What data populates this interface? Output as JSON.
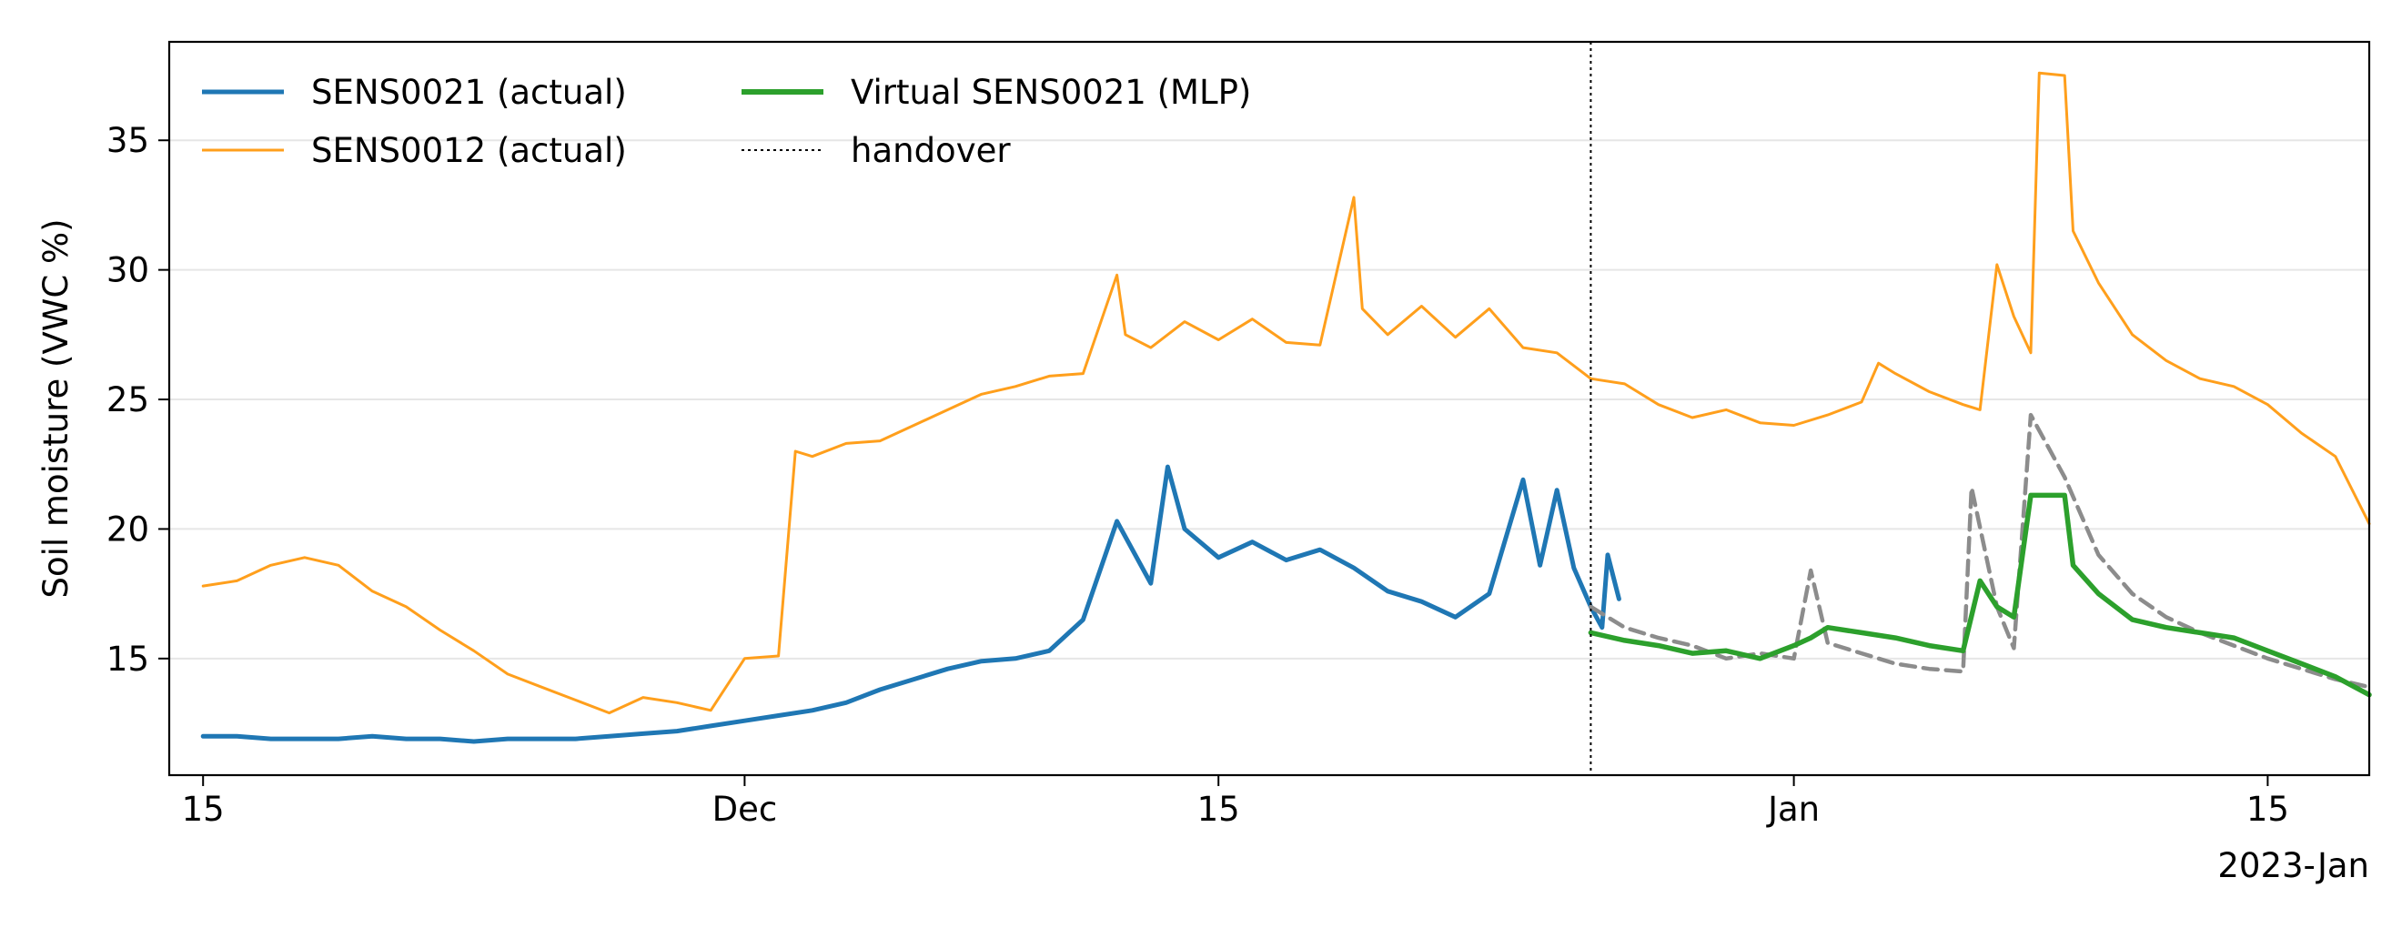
{
  "chart_data": {
    "type": "line",
    "ylabel": "Soil moisture (VWC %)",
    "xlabel": "",
    "x_axis": {
      "type": "date",
      "range": [
        "2022-11-14",
        "2023-01-18"
      ],
      "ticks": [
        {
          "date": "2022-11-15",
          "label": "15"
        },
        {
          "date": "2022-12-01",
          "label": "Dec"
        },
        {
          "date": "2022-12-15",
          "label": "15"
        },
        {
          "date": "2023-01-01",
          "label": "Jan"
        },
        {
          "date": "2023-01-15",
          "label": "15"
        }
      ],
      "offset_label": "2023-Jan"
    },
    "y_axis": {
      "range": [
        10.5,
        38.8
      ],
      "ticks": [
        15,
        20,
        25,
        30,
        35
      ]
    },
    "grid": "horizontal",
    "legend": {
      "placement": "top-left",
      "columns": 2,
      "entries": [
        {
          "label": "SENS0021 (actual)",
          "series": "sens0021"
        },
        {
          "label": "SENS0012 (actual)",
          "series": "sens0012"
        },
        {
          "label": "Virtual SENS0021 (MLP)",
          "series": "virtual"
        },
        {
          "label": "handover",
          "series": "handover"
        }
      ]
    },
    "handover_date": "2022-12-26",
    "series": [
      {
        "id": "sens0021",
        "color": "#1f77b4",
        "points": [
          [
            "2022-11-15",
            12.0
          ],
          [
            "2022-11-16",
            12.0
          ],
          [
            "2022-11-17",
            11.9
          ],
          [
            "2022-11-18",
            11.9
          ],
          [
            "2022-11-19",
            11.9
          ],
          [
            "2022-11-20",
            12.0
          ],
          [
            "2022-11-21",
            11.9
          ],
          [
            "2022-11-22",
            11.9
          ],
          [
            "2022-11-23",
            11.8
          ],
          [
            "2022-11-24",
            11.9
          ],
          [
            "2022-11-25",
            11.9
          ],
          [
            "2022-11-26",
            11.9
          ],
          [
            "2022-11-27",
            12.0
          ],
          [
            "2022-11-28",
            12.1
          ],
          [
            "2022-11-29",
            12.2
          ],
          [
            "2022-11-30",
            12.4
          ],
          [
            "2022-12-01",
            12.6
          ],
          [
            "2022-12-02",
            12.8
          ],
          [
            "2022-12-03",
            13.0
          ],
          [
            "2022-12-04",
            13.3
          ],
          [
            "2022-12-05",
            13.8
          ],
          [
            "2022-12-06",
            14.2
          ],
          [
            "2022-12-07",
            14.6
          ],
          [
            "2022-12-08",
            14.9
          ],
          [
            "2022-12-09",
            15.0
          ],
          [
            "2022-12-10",
            15.3
          ],
          [
            "2022-12-11",
            16.5
          ],
          [
            "2022-12-12",
            20.3
          ],
          [
            "2022-12-13",
            17.9
          ],
          [
            "2022-12-13T12:00",
            22.4
          ],
          [
            "2022-12-14",
            20.0
          ],
          [
            "2022-12-15",
            18.9
          ],
          [
            "2022-12-16",
            19.5
          ],
          [
            "2022-12-17",
            18.8
          ],
          [
            "2022-12-18",
            19.2
          ],
          [
            "2022-12-19",
            18.5
          ],
          [
            "2022-12-20",
            17.6
          ],
          [
            "2022-12-21",
            17.2
          ],
          [
            "2022-12-22",
            16.6
          ],
          [
            "2022-12-23",
            17.5
          ],
          [
            "2022-12-24",
            21.9
          ],
          [
            "2022-12-24T12:00",
            18.6
          ],
          [
            "2022-12-25",
            21.5
          ],
          [
            "2022-12-25T12:00",
            18.5
          ],
          [
            "2022-12-26",
            17.0
          ],
          [
            "2022-12-26T08:00",
            16.2
          ],
          [
            "2022-12-26T12:00",
            19.0
          ],
          [
            "2022-12-26T20:00",
            17.3
          ]
        ]
      },
      {
        "id": "sens0012",
        "color": "#ff9f1c",
        "points": [
          [
            "2022-11-15",
            17.8
          ],
          [
            "2022-11-16",
            18.0
          ],
          [
            "2022-11-17",
            18.6
          ],
          [
            "2022-11-18",
            18.9
          ],
          [
            "2022-11-19",
            18.6
          ],
          [
            "2022-11-20",
            17.6
          ],
          [
            "2022-11-21",
            17.0
          ],
          [
            "2022-11-22",
            16.1
          ],
          [
            "2022-11-23",
            15.3
          ],
          [
            "2022-11-24",
            14.4
          ],
          [
            "2022-11-25",
            13.9
          ],
          [
            "2022-11-26",
            13.4
          ],
          [
            "2022-11-27",
            12.9
          ],
          [
            "2022-11-28",
            13.5
          ],
          [
            "2022-11-29",
            13.3
          ],
          [
            "2022-11-30",
            13.0
          ],
          [
            "2022-12-01",
            15.0
          ],
          [
            "2022-12-02",
            15.1
          ],
          [
            "2022-12-02T12:00",
            23.0
          ],
          [
            "2022-12-03",
            22.8
          ],
          [
            "2022-12-04",
            23.3
          ],
          [
            "2022-12-05",
            23.4
          ],
          [
            "2022-12-06",
            24.0
          ],
          [
            "2022-12-07",
            24.6
          ],
          [
            "2022-12-08",
            25.2
          ],
          [
            "2022-12-09",
            25.5
          ],
          [
            "2022-12-10",
            25.9
          ],
          [
            "2022-12-11",
            26.0
          ],
          [
            "2022-12-12",
            29.8
          ],
          [
            "2022-12-12T06:00",
            27.5
          ],
          [
            "2022-12-13",
            27.0
          ],
          [
            "2022-12-14",
            28.0
          ],
          [
            "2022-12-15",
            27.3
          ],
          [
            "2022-12-16",
            28.1
          ],
          [
            "2022-12-17",
            27.2
          ],
          [
            "2022-12-18",
            27.1
          ],
          [
            "2022-12-19",
            32.8
          ],
          [
            "2022-12-19T06:00",
            28.5
          ],
          [
            "2022-12-20",
            27.5
          ],
          [
            "2022-12-21",
            28.6
          ],
          [
            "2022-12-22",
            27.4
          ],
          [
            "2022-12-23",
            28.5
          ],
          [
            "2022-12-24",
            27.0
          ],
          [
            "2022-12-25",
            26.8
          ],
          [
            "2022-12-26",
            25.8
          ],
          [
            "2022-12-27",
            25.6
          ],
          [
            "2022-12-28",
            24.8
          ],
          [
            "2022-12-29",
            24.3
          ],
          [
            "2022-12-30",
            24.6
          ],
          [
            "2022-12-31",
            24.1
          ],
          [
            "2023-01-01",
            24.0
          ],
          [
            "2023-01-02",
            24.4
          ],
          [
            "2023-01-03",
            24.9
          ],
          [
            "2023-01-03T12:00",
            26.4
          ],
          [
            "2023-01-04",
            26.0
          ],
          [
            "2023-01-05",
            25.3
          ],
          [
            "2023-01-06",
            24.8
          ],
          [
            "2023-01-06T12:00",
            24.6
          ],
          [
            "2023-01-07",
            30.2
          ],
          [
            "2023-01-07T12:00",
            28.2
          ],
          [
            "2023-01-08",
            26.8
          ],
          [
            "2023-01-08T06:00",
            37.6
          ],
          [
            "2023-01-09",
            37.5
          ],
          [
            "2023-01-09T06:00",
            31.5
          ],
          [
            "2023-01-10",
            29.5
          ],
          [
            "2023-01-11",
            27.5
          ],
          [
            "2023-01-12",
            26.5
          ],
          [
            "2023-01-13",
            25.8
          ],
          [
            "2023-01-14",
            25.5
          ],
          [
            "2023-01-15",
            24.8
          ],
          [
            "2023-01-16",
            23.7
          ],
          [
            "2023-01-17",
            22.8
          ],
          [
            "2023-01-18",
            20.2
          ]
        ]
      },
      {
        "id": "virtual",
        "color": "#2ca02c",
        "points": [
          [
            "2022-12-26",
            16.0
          ],
          [
            "2022-12-27",
            15.7
          ],
          [
            "2022-12-28",
            15.5
          ],
          [
            "2022-12-29",
            15.2
          ],
          [
            "2022-12-30",
            15.3
          ],
          [
            "2022-12-31",
            15.0
          ],
          [
            "2023-01-01",
            15.5
          ],
          [
            "2023-01-01T12:00",
            15.8
          ],
          [
            "2023-01-02",
            16.2
          ],
          [
            "2023-01-03",
            16.0
          ],
          [
            "2023-01-04",
            15.8
          ],
          [
            "2023-01-05",
            15.5
          ],
          [
            "2023-01-06",
            15.3
          ],
          [
            "2023-01-06T12:00",
            18.0
          ],
          [
            "2023-01-07",
            17.0
          ],
          [
            "2023-01-07T12:00",
            16.6
          ],
          [
            "2023-01-08",
            21.3
          ],
          [
            "2023-01-09",
            21.3
          ],
          [
            "2023-01-09T06:00",
            18.6
          ],
          [
            "2023-01-10",
            17.5
          ],
          [
            "2023-01-11",
            16.5
          ],
          [
            "2023-01-12",
            16.2
          ],
          [
            "2023-01-13",
            16.0
          ],
          [
            "2023-01-14",
            15.8
          ],
          [
            "2023-01-15",
            15.3
          ],
          [
            "2023-01-16",
            14.8
          ],
          [
            "2023-01-17",
            14.3
          ],
          [
            "2023-01-18",
            13.6
          ]
        ]
      },
      {
        "id": "gray-dashed",
        "color": "#8c8c8c",
        "points": [
          [
            "2022-12-26",
            17.0
          ],
          [
            "2022-12-27",
            16.2
          ],
          [
            "2022-12-28",
            15.8
          ],
          [
            "2022-12-29",
            15.5
          ],
          [
            "2022-12-30",
            15.0
          ],
          [
            "2022-12-31",
            15.2
          ],
          [
            "2023-01-01",
            15.0
          ],
          [
            "2023-01-01T12:00",
            18.4
          ],
          [
            "2023-01-02",
            15.6
          ],
          [
            "2023-01-03",
            15.2
          ],
          [
            "2023-01-04",
            14.8
          ],
          [
            "2023-01-05",
            14.6
          ],
          [
            "2023-01-06",
            14.5
          ],
          [
            "2023-01-06T06:00",
            21.6
          ],
          [
            "2023-01-07",
            17.0
          ],
          [
            "2023-01-07T12:00",
            15.4
          ],
          [
            "2023-01-08",
            24.4
          ],
          [
            "2023-01-09",
            22.0
          ],
          [
            "2023-01-10",
            19.0
          ],
          [
            "2023-01-11",
            17.5
          ],
          [
            "2023-01-12",
            16.6
          ],
          [
            "2023-01-13",
            16.0
          ],
          [
            "2023-01-14",
            15.5
          ],
          [
            "2023-01-15",
            15.0
          ],
          [
            "2023-01-16",
            14.6
          ],
          [
            "2023-01-17",
            14.2
          ],
          [
            "2023-01-18",
            13.9
          ]
        ]
      }
    ]
  }
}
